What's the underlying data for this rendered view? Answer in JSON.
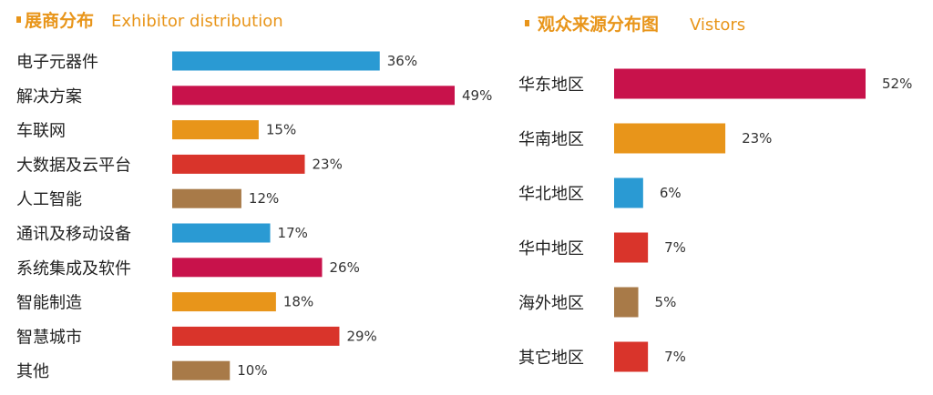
{
  "chart_data": [
    {
      "type": "bar",
      "orientation": "horizontal",
      "title": "展商分布",
      "subtitle": "Exhibitor distribution",
      "categories": [
        "电子元器件",
        "解决方案",
        "车联网",
        "大数据及云平台",
        "人工智能",
        "通讯及移动设备",
        "系统集成及软件",
        "智能制造",
        "智慧城市",
        "其他"
      ],
      "values": [
        36,
        49,
        15,
        23,
        12,
        17,
        26,
        18,
        29,
        10
      ],
      "value_labels": [
        "36%",
        "49%",
        "15%",
        "23%",
        "12%",
        "17%",
        "26%",
        "18%",
        "29%",
        "10%"
      ],
      "bar_colors": [
        "#2a9ad3",
        "#c8124b",
        "#e8951a",
        "#d9342b",
        "#a87a48",
        "#2a9ad3",
        "#c8124b",
        "#e8951a",
        "#d9342b",
        "#a87a48"
      ],
      "xlim": [
        0,
        49
      ]
    },
    {
      "type": "bar",
      "orientation": "horizontal",
      "title": "观众来源分布图",
      "subtitle": "Vistors",
      "categories": [
        "华东地区",
        "华南地区",
        "华北地区",
        "华中地区",
        "海外地区",
        "其它地区"
      ],
      "values": [
        52,
        23,
        6,
        7,
        5,
        7
      ],
      "value_labels": [
        "52%",
        "23%",
        "6%",
        "7%",
        "5%",
        "7%"
      ],
      "bar_colors": [
        "#c8124b",
        "#e8951a",
        "#2a9ad3",
        "#d9342b",
        "#a87a48",
        "#d9342b"
      ],
      "xlim": [
        0,
        52
      ]
    }
  ],
  "colors": {
    "title_accent": "#e8951a",
    "text": "#222222"
  }
}
